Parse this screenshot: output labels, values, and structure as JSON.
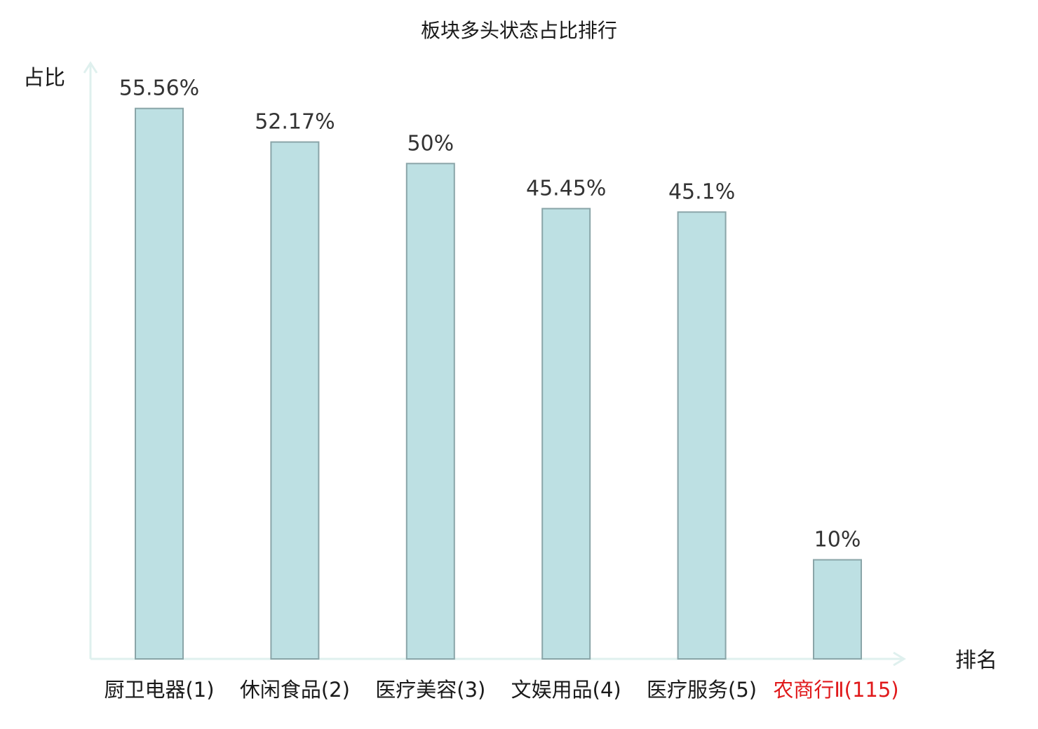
{
  "chart_data": {
    "type": "bar",
    "title": "板块多头状态占比排行",
    "ylabel": "占比",
    "xlabel": "排名",
    "categories": [
      "厨卫电器(1)",
      "休闲食品(2)",
      "医疗美容(3)",
      "文娱用品(4)",
      "医疗服务(5)",
      "农商行Ⅱ(115)"
    ],
    "values": [
      55.56,
      52.17,
      50,
      45.45,
      45.1,
      10
    ],
    "value_labels": [
      "55.56%",
      "52.17%",
      "50%",
      "45.45%",
      "45.1%",
      "10%"
    ],
    "highlight_index": 5,
    "ylim": [
      0,
      60
    ],
    "grid": false,
    "legend": "none"
  },
  "colors": {
    "bar_fill": "#bde0e3",
    "bar_stroke": "#8aa5a8",
    "axis": "#dff0ee",
    "text": "#1a1a1a",
    "value_text": "#333333",
    "highlight_text": "#e0191b"
  }
}
